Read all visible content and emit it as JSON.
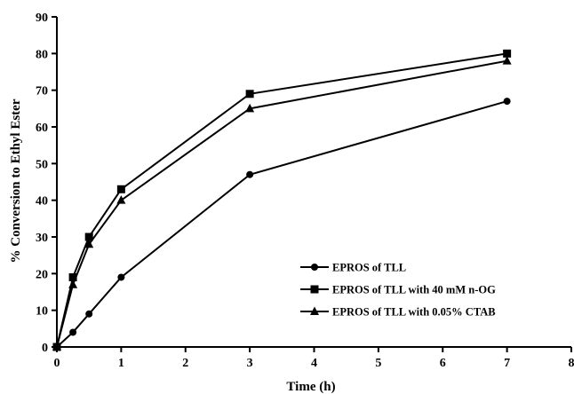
{
  "chart_data": {
    "type": "line",
    "xlabel": "Time (h)",
    "ylabel": "% Conversion to Ethyl Ester",
    "xlim": [
      0,
      8
    ],
    "ylim": [
      0,
      90
    ],
    "xticks": [
      0,
      1,
      2,
      3,
      4,
      5,
      6,
      7,
      8
    ],
    "yticks": [
      0,
      10,
      20,
      30,
      40,
      50,
      60,
      70,
      80,
      90
    ],
    "grid": false,
    "legend_position": "bottom-right",
    "x": [
      0,
      0.25,
      0.5,
      1,
      3,
      7
    ],
    "series": [
      {
        "name": "EPROS of TLL",
        "marker": "circle",
        "values": [
          0,
          4,
          9,
          19,
          47,
          67
        ]
      },
      {
        "name": "EPROS of TLL with 40 mM n-OG",
        "marker": "square",
        "values": [
          0,
          19,
          30,
          43,
          69,
          80
        ]
      },
      {
        "name": "EPROS of TLL with 0.05% CTAB",
        "marker": "triangle",
        "values": [
          0,
          17,
          28,
          40,
          65,
          78
        ]
      }
    ]
  }
}
